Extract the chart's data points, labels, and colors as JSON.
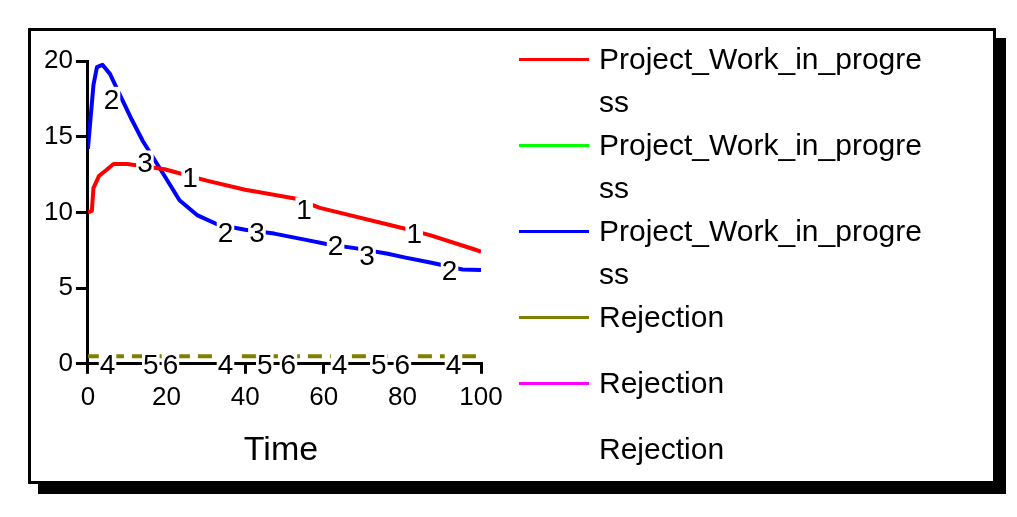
{
  "chart_data": {
    "type": "line",
    "xlabel": "Time",
    "xlim": [
      0,
      100
    ],
    "xticks": [
      0,
      20,
      40,
      60,
      80,
      100
    ],
    "ylim": [
      0,
      20
    ],
    "yticks": [
      0,
      5,
      10,
      15,
      20
    ],
    "grid": false,
    "legend": "right",
    "marker": "none",
    "line_style": "solid",
    "series": [
      {
        "name": "Project_Work_in_progress",
        "color": "#ff0000",
        "x": [
          0,
          1,
          1.4,
          2.8,
          4.7,
          6.5,
          10,
          19.5,
          30.2,
          40,
          53,
          59,
          81,
          87,
          99,
          100
        ],
        "values": [
          10,
          10.1,
          11.6,
          12.4,
          12.8,
          13.2,
          13.2,
          12.85,
          12.1,
          11.5,
          10.9,
          10.3,
          8.9,
          8.5,
          7.5,
          7.4
        ]
      },
      {
        "name": "Project_Work_in_progress",
        "color": "#00ff00"
      },
      {
        "name": "Project_Work_in_progress",
        "color": "#0000ff",
        "x": [
          0,
          1.4,
          2.3,
          3.7,
          5.6,
          11.2,
          14,
          19.5,
          23.3,
          27.9,
          33,
          40,
          47.4,
          55.8,
          61,
          67.9,
          76.3,
          80.5,
          87.4,
          95.3,
          100
        ],
        "values": [
          14.2,
          18.4,
          19.6,
          19.75,
          19.15,
          16.1,
          14.7,
          12.4,
          10.8,
          9.8,
          9.2,
          8.85,
          8.6,
          8.17,
          7.9,
          7.64,
          7.27,
          7.03,
          6.67,
          6.23,
          6.2
        ]
      },
      {
        "name": "Rejection",
        "color": "#808000",
        "line_style": "dashed",
        "x": [
          0,
          100
        ],
        "values": [
          0.5,
          0.5
        ]
      },
      {
        "name": "Rejection",
        "color": "#ff00ff"
      },
      {
        "name": "Rejection"
      }
    ],
    "annotations": [
      {
        "text": "1",
        "x": 26,
        "y": 12.3
      },
      {
        "text": "1",
        "x": 55,
        "y": 10.2
      },
      {
        "text": "1",
        "x": 83,
        "y": 8.6
      },
      {
        "text": "2",
        "x": 6,
        "y": 17.5
      },
      {
        "text": "2",
        "x": 35,
        "y": 8.7
      },
      {
        "text": "2",
        "x": 63,
        "y": 7.8
      },
      {
        "text": "2",
        "x": 92,
        "y": 6.2
      },
      {
        "text": "3",
        "x": 14.5,
        "y": 13.3
      },
      {
        "text": "3",
        "x": 43,
        "y": 8.7
      },
      {
        "text": "3",
        "x": 71,
        "y": 7.2
      },
      {
        "text": "4",
        "x": 5,
        "y": 0
      },
      {
        "text": "4",
        "x": 35,
        "y": 0
      },
      {
        "text": "4",
        "x": 64,
        "y": 0
      },
      {
        "text": "4",
        "x": 93,
        "y": 0
      },
      {
        "text": "5",
        "x": 16,
        "y": 0
      },
      {
        "text": "5",
        "x": 45,
        "y": 0
      },
      {
        "text": "5",
        "x": 74,
        "y": 0
      },
      {
        "text": "6",
        "x": 21,
        "y": 0
      },
      {
        "text": "6",
        "x": 51,
        "y": 0
      },
      {
        "text": "6",
        "x": 80,
        "y": 0
      }
    ]
  }
}
